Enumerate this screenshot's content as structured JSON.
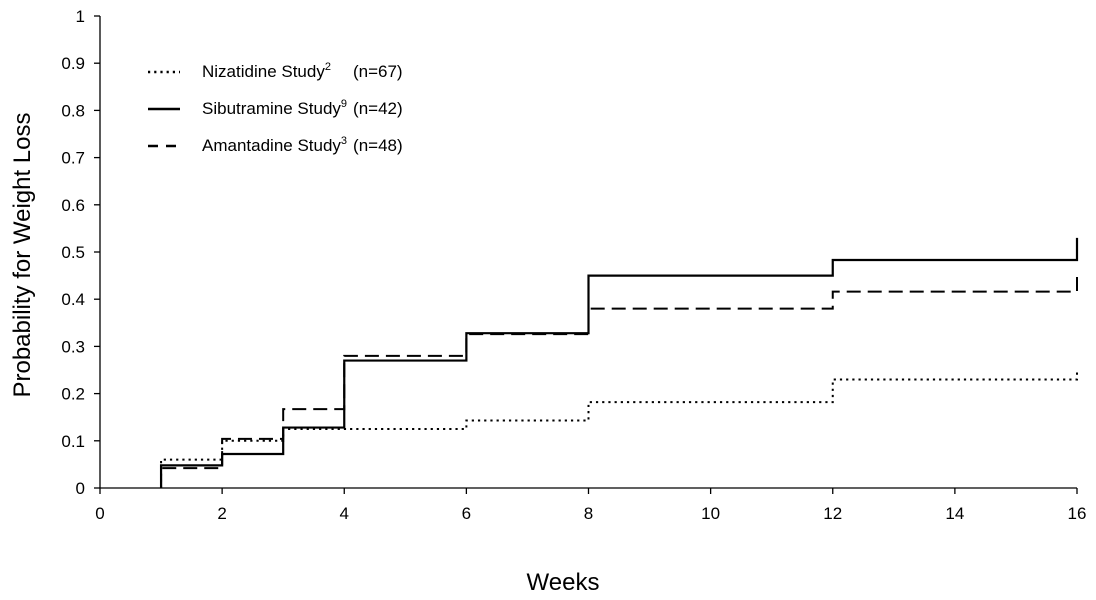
{
  "chart_data": {
    "type": "line",
    "step": true,
    "xlabel": "Weeks",
    "ylabel": "Probability for Weight Loss",
    "xlim": [
      0,
      16
    ],
    "ylim": [
      0,
      1
    ],
    "xticks": [
      0,
      2,
      4,
      6,
      8,
      10,
      12,
      14,
      16
    ],
    "yticks": [
      0,
      0.1,
      0.2,
      0.3,
      0.4,
      0.5,
      0.6,
      0.7,
      0.8,
      0.9,
      1
    ],
    "ytick_labels": [
      "0",
      "0.1",
      "0.2",
      "0.3",
      "0.4",
      "0.5",
      "0.6",
      "0.7",
      "0.8",
      "0.9",
      "1"
    ],
    "grid": false,
    "legend_position": "top-left",
    "series": [
      {
        "name": "Nizatidine Study",
        "superscript": "2",
        "n_label": "(n=67)",
        "line_style": "dotted",
        "color": "#000000",
        "x": [
          1,
          2,
          3,
          4,
          6,
          8,
          12,
          16
        ],
        "y": [
          0.06,
          0.1,
          0.125,
          0.125,
          0.143,
          0.182,
          0.23,
          0.25
        ]
      },
      {
        "name": "Sibutramine Study",
        "superscript": "9",
        "n_label": "(n=42)",
        "line_style": "solid",
        "color": "#000000",
        "x": [
          1,
          2,
          3,
          4,
          6,
          8,
          12,
          16
        ],
        "y": [
          0.048,
          0.072,
          0.128,
          0.27,
          0.328,
          0.45,
          0.483,
          0.53
        ]
      },
      {
        "name": "Amantadine Study",
        "superscript": "3",
        "n_label": "(n=48)",
        "line_style": "dashed",
        "color": "#000000",
        "x": [
          1,
          2,
          3,
          4,
          6,
          8,
          12,
          16
        ],
        "y": [
          0.042,
          0.104,
          0.167,
          0.28,
          0.326,
          0.38,
          0.416,
          0.455
        ]
      }
    ]
  }
}
